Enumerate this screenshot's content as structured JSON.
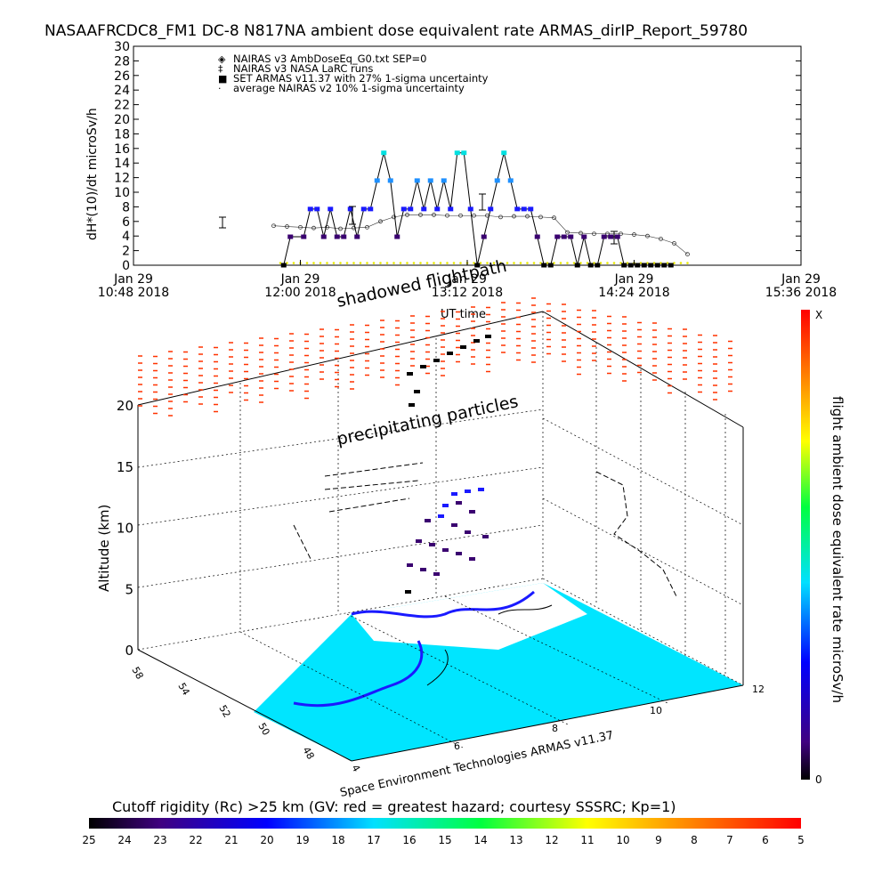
{
  "title": "NASAAFRCDC8_FM1 DC-8   N817NA ambient dose equivalent rate ARMAS_dirIP_Report_59780",
  "chart_data": [
    {
      "type": "scatter",
      "ylabel": "dH*(10)/dt microSv/h",
      "xlabel": "UT time",
      "ylim": [
        0,
        30
      ],
      "yticks": [
        "0",
        "2",
        "4",
        "6",
        "8",
        "10",
        "12",
        "14",
        "16",
        "18",
        "20",
        "22",
        "24",
        "26",
        "28",
        "30"
      ],
      "xticks": [
        {
          "top": "Jan 29",
          "bottom": "10:48 2018"
        },
        {
          "top": "Jan 29",
          "bottom": "12:00 2018"
        },
        {
          "top": "Jan 29",
          "bottom": "13:12 2018"
        },
        {
          "top": "Jan 29",
          "bottom": "14:24 2018"
        },
        {
          "top": "Jan 29",
          "bottom": "15:36 2018"
        }
      ],
      "legend": [
        {
          "symbol": "◈",
          "text": "NAIRAS v3 AmbDoseEq_G0.txt SEP=0",
          "color": "#333333"
        },
        {
          "symbol": "‡",
          "text": "NAIRAS v3 NASA LaRC runs",
          "color": "#333333"
        },
        {
          "symbol": "■",
          "text": "SET ARMAS v11.37 with 27% 1-sigma uncertainty",
          "color": "#1a1aff"
        },
        {
          "symbol": "·",
          "text": "average NAIRAS v2 10% 1-sigma uncertainty",
          "color": "#00ffff"
        }
      ],
      "nairas_x": [
        0.21,
        0.23,
        0.25,
        0.27,
        0.29,
        0.31,
        0.33,
        0.35,
        0.37,
        0.39,
        0.41,
        0.43,
        0.45,
        0.47,
        0.49,
        0.51,
        0.53,
        0.55,
        0.57,
        0.59,
        0.61,
        0.63,
        0.65,
        0.67,
        0.69,
        0.71,
        0.73,
        0.75,
        0.77,
        0.79,
        0.81,
        0.83
      ],
      "nairas_y": [
        5.4,
        5.3,
        5.2,
        5.1,
        5.2,
        5.0,
        5.1,
        5.2,
        6.0,
        6.6,
        6.9,
        6.9,
        6.9,
        6.8,
        6.8,
        6.8,
        6.8,
        6.6,
        6.7,
        6.7,
        6.6,
        6.5,
        4.5,
        4.4,
        4.3,
        4.3,
        4.3,
        4.2,
        4.0,
        3.6,
        3.0,
        1.5
      ],
      "armas_x": [
        0.225,
        0.235,
        0.255,
        0.265,
        0.275,
        0.285,
        0.295,
        0.305,
        0.315,
        0.325,
        0.335,
        0.345,
        0.355,
        0.365,
        0.375,
        0.385,
        0.395,
        0.405,
        0.415,
        0.425,
        0.435,
        0.445,
        0.455,
        0.465,
        0.475,
        0.485,
        0.495,
        0.505,
        0.515,
        0.525,
        0.535,
        0.545,
        0.555,
        0.565,
        0.575,
        0.585,
        0.595,
        0.605,
        0.615,
        0.625,
        0.635,
        0.645,
        0.655,
        0.665,
        0.675,
        0.685,
        0.695,
        0.705,
        0.715,
        0.725,
        0.735,
        0.745,
        0.755,
        0.765,
        0.775,
        0.785,
        0.795,
        0.805
      ],
      "armas_y": [
        0,
        3.9,
        3.9,
        7.7,
        7.7,
        3.9,
        7.7,
        3.9,
        3.9,
        7.7,
        3.9,
        7.7,
        7.7,
        11.6,
        15.4,
        11.6,
        3.9,
        7.7,
        7.7,
        11.6,
        7.7,
        11.6,
        7.7,
        11.6,
        7.7,
        15.4,
        15.4,
        7.7,
        0,
        3.9,
        7.7,
        11.6,
        15.4,
        11.6,
        7.7,
        7.7,
        7.7,
        3.9,
        0,
        0,
        3.9,
        3.9,
        3.9,
        0,
        3.9,
        0,
        0,
        3.9,
        3.9,
        3.9,
        0,
        0,
        0,
        0,
        0,
        0,
        0,
        0
      ],
      "yellow_x": [
        0.22,
        0.23,
        0.24,
        0.25,
        0.26,
        0.27,
        0.28,
        0.29,
        0.3,
        0.31,
        0.32,
        0.33,
        0.34,
        0.35,
        0.36,
        0.37,
        0.38,
        0.39,
        0.4,
        0.41,
        0.42,
        0.43,
        0.44,
        0.45,
        0.46,
        0.47,
        0.48,
        0.49,
        0.5,
        0.51,
        0.52,
        0.53,
        0.54,
        0.55,
        0.56,
        0.57,
        0.58,
        0.59,
        0.6,
        0.61,
        0.62,
        0.63,
        0.64,
        0.65,
        0.66,
        0.67,
        0.68,
        0.69,
        0.7,
        0.71,
        0.72,
        0.73,
        0.74,
        0.75,
        0.76,
        0.77,
        0.78,
        0.79,
        0.8,
        0.81,
        0.82,
        0.83
      ],
      "yellow_y": [
        0.3,
        0.3,
        0.3,
        0.3,
        0.3,
        0.3,
        0.3,
        0.3,
        0.3,
        0.3,
        0.3,
        0.3,
        0.3,
        0.3,
        0.3,
        0.3,
        0.3,
        0.3,
        0.3,
        0.3,
        0.3,
        0.3,
        0.3,
        0.3,
        0.3,
        0.3,
        0.3,
        0.3,
        0.3,
        0.3,
        0.3,
        0.3,
        0.3,
        0.3,
        0.3,
        0.3,
        0.3,
        0.3,
        0.3,
        0.3,
        0.3,
        0.3,
        0.3,
        0.3,
        0.3,
        0.3,
        0.3,
        0.3,
        0.3,
        0.3,
        0.3,
        0.3,
        0.3,
        0.3,
        0.3,
        0.3,
        0.3,
        0.3,
        0.3,
        0.3,
        0.3,
        0.3
      ]
    }
  ],
  "annotations": {
    "shadowed": "shadowed flightpath",
    "precip": "precipitating particles",
    "credit": "Space Environment Technologies ARMAS v11.37",
    "altitude_label": "Altitude (km)",
    "altitude_ticks": [
      "0",
      "5",
      "10",
      "15",
      "20"
    ]
  },
  "colorbar_right": {
    "label": "flight ambient dose equivalent rate microSv/h",
    "top": "X",
    "bottom": "0"
  },
  "colorbar_bottom": {
    "label": "Cutoff rigidity (Rc) >25 km (GV: red = greatest hazard; courtesy SSSRC; Kp=1)",
    "ticks": [
      "25",
      "24",
      "23",
      "22",
      "21",
      "20",
      "19",
      "18",
      "17",
      "16",
      "15",
      "14",
      "13",
      "12",
      "11",
      "10",
      "9",
      "8",
      "7",
      "6",
      "5"
    ]
  },
  "colors": {
    "armas": "#1a1aff",
    "armas_high": "#00e0e0",
    "armas_low": "#3a0070",
    "nairas": "#333333",
    "yellow": "#e8e800",
    "ocean": "#00e5ff",
    "precip": "#ff3300"
  }
}
